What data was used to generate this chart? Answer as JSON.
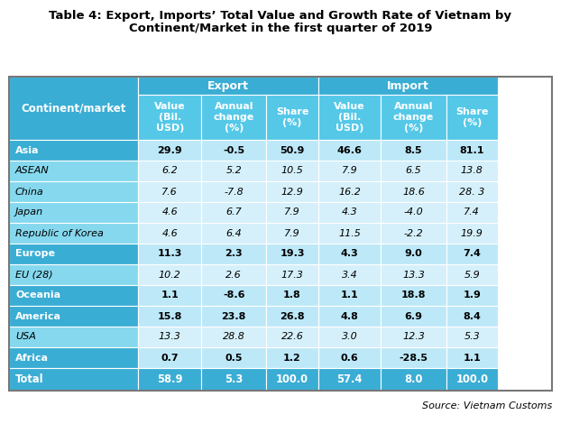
{
  "title_line1": "Table 4: Export, Imports’ Total Value and Growth Rate of Vietnam by",
  "title_line2": "Continent/Market in the first quarter of 2019",
  "source": "Source: Vietnam Customs",
  "col_header_row2": [
    "Continent/market",
    "Value\n(Bil.\nUSD)",
    "Annual\nchange\n(%)",
    "Share\n(%)",
    "Value\n(Bil.\nUSD)",
    "Annual\nchange\n(%)",
    "Share\n(%)"
  ],
  "rows": [
    {
      "label": "Asia",
      "bold": true,
      "italic": false,
      "export": [
        "29.9",
        "-0.5",
        "50.9"
      ],
      "import": [
        "46.6",
        "8.5",
        "81.1"
      ]
    },
    {
      "label": "ASEAN",
      "bold": false,
      "italic": true,
      "export": [
        "6.2",
        "5.2",
        "10.5"
      ],
      "import": [
        "7.9",
        "6.5",
        "13.8"
      ]
    },
    {
      "label": "China",
      "bold": false,
      "italic": true,
      "export": [
        "7.6",
        "-7.8",
        "12.9"
      ],
      "import": [
        "16.2",
        "18.6",
        "28. 3"
      ]
    },
    {
      "label": "Japan",
      "bold": false,
      "italic": true,
      "export": [
        "4.6",
        "6.7",
        "7.9"
      ],
      "import": [
        "4.3",
        "-4.0",
        "7.4"
      ]
    },
    {
      "label": "Republic of Korea",
      "bold": false,
      "italic": true,
      "export": [
        "4.6",
        "6.4",
        "7.9"
      ],
      "import": [
        "11.5",
        "-2.2",
        "19.9"
      ]
    },
    {
      "label": "Europe",
      "bold": true,
      "italic": false,
      "export": [
        "11.3",
        "2.3",
        "19.3"
      ],
      "import": [
        "4.3",
        "9.0",
        "7.4"
      ]
    },
    {
      "label": "EU (28)",
      "bold": false,
      "italic": true,
      "export": [
        "10.2",
        "2.6",
        "17.3"
      ],
      "import": [
        "3.4",
        "13.3",
        "5.9"
      ]
    },
    {
      "label": "Oceania",
      "bold": true,
      "italic": false,
      "export": [
        "1.1",
        "-8.6",
        "1.8"
      ],
      "import": [
        "1.1",
        "18.8",
        "1.9"
      ]
    },
    {
      "label": "America",
      "bold": true,
      "italic": false,
      "export": [
        "15.8",
        "23.8",
        "26.8"
      ],
      "import": [
        "4.8",
        "6.9",
        "8.4"
      ]
    },
    {
      "label": "USA",
      "bold": false,
      "italic": true,
      "export": [
        "13.3",
        "28.8",
        "22.6"
      ],
      "import": [
        "3.0",
        "12.3",
        "5.3"
      ]
    },
    {
      "label": "Africa",
      "bold": true,
      "italic": false,
      "export": [
        "0.7",
        "0.5",
        "1.2"
      ],
      "import": [
        "0.6",
        "-28.5",
        "1.1"
      ]
    },
    {
      "label": "Total",
      "bold": true,
      "italic": false,
      "export": [
        "58.9",
        "5.3",
        "100.0"
      ],
      "import": [
        "57.4",
        "8.0",
        "100.0"
      ]
    }
  ],
  "color_header_dark": "#3AADD4",
  "color_header_light": "#55C8E8",
  "color_left_bold": "#3AADD4",
  "color_left_italic": "#85D8EE",
  "color_data_bold": "#BDE8F8",
  "color_data_italic": "#D5F0FA",
  "color_total": "#3AADD4",
  "color_border": "#ffffff",
  "fig_w": 6.22,
  "fig_h": 4.7,
  "dpi": 100
}
